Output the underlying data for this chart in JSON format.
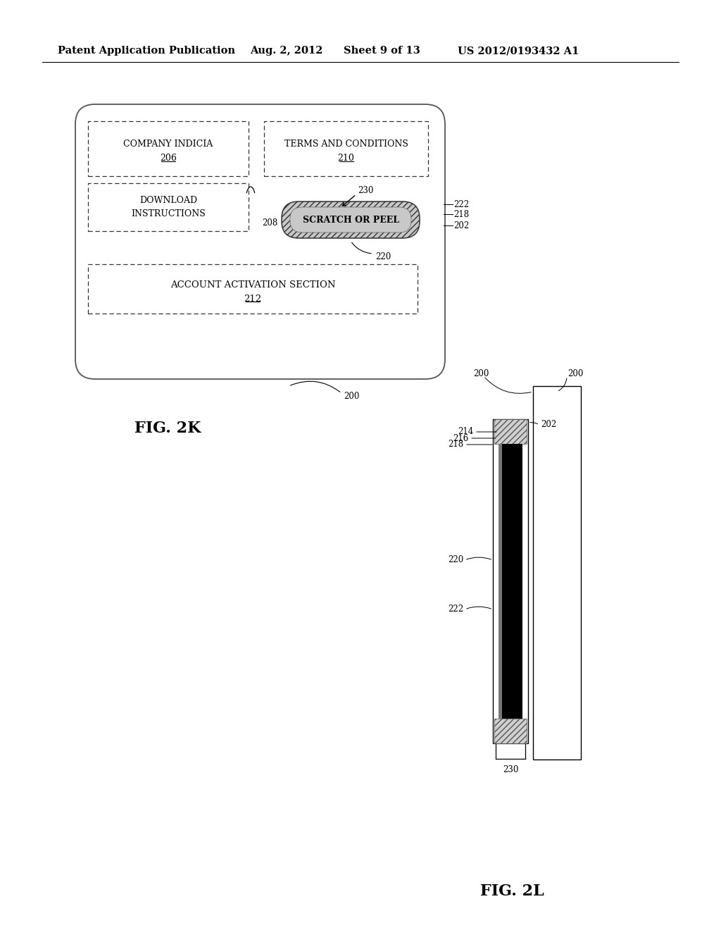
{
  "bg_color": "#ffffff",
  "header_text": "Patent Application Publication",
  "header_date": "Aug. 2, 2012",
  "header_sheet": "Sheet 9 of 13",
  "header_patent": "US 2012/0193432 A1",
  "fig2k_label": "FIG. 2K",
  "fig2l_label": "FIG. 2L"
}
